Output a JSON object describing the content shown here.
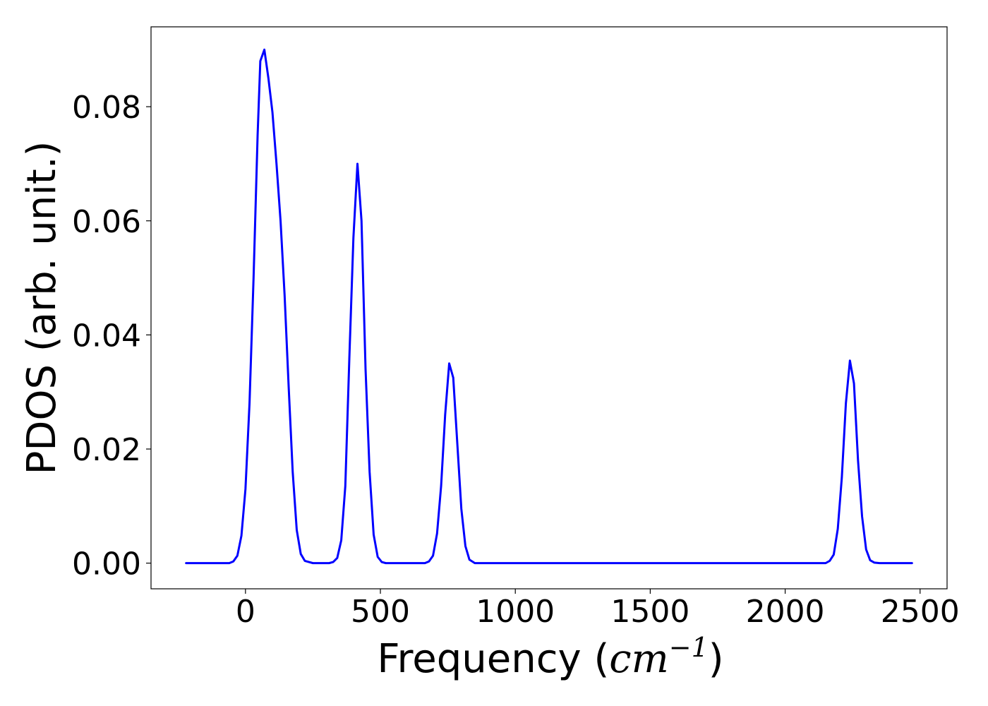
{
  "chart_data": {
    "type": "line",
    "title": "",
    "xlabel": {
      "prefix": "Frequency (",
      "unit_base": "cm",
      "unit_exponent": "−1",
      "suffix": ")"
    },
    "ylabel": "PDOS (arb. unit.)",
    "xlim": [
      -350,
      2600
    ],
    "ylim": [
      -0.0045,
      0.094
    ],
    "grid": false,
    "legend": "none",
    "xticks": [
      0,
      500,
      1000,
      1500,
      2000,
      2500
    ],
    "xtick_labels": [
      "0",
      "500",
      "1000",
      "1500",
      "2000",
      "2500"
    ],
    "yticks": [
      0.0,
      0.02,
      0.04,
      0.06,
      0.08
    ],
    "ytick_labels": [
      "0.00",
      "0.02",
      "0.04",
      "0.06",
      "0.08"
    ],
    "line_color": "#0000ff",
    "series": [
      {
        "x": [
          -220,
          -180,
          -140,
          -100,
          -60,
          -45,
          -30,
          -15,
          0,
          15,
          30,
          45,
          55,
          70,
          85,
          100,
          115,
          130,
          145,
          160,
          175,
          190,
          205,
          220,
          250,
          280,
          310,
          325,
          340,
          355,
          370,
          385,
          400,
          415,
          430,
          445,
          460,
          475,
          490,
          505,
          520,
          560,
          600,
          640,
          665,
          680,
          695,
          710,
          725,
          740,
          755,
          770,
          785,
          800,
          815,
          830,
          850,
          900,
          1000,
          1200,
          1400,
          1600,
          1800,
          2000,
          2100,
          2150,
          2165,
          2180,
          2195,
          2210,
          2225,
          2240,
          2255,
          2270,
          2285,
          2300,
          2315,
          2330,
          2350,
          2400,
          2470
        ],
        "y": [
          0.0,
          0.0,
          0.0,
          0.0,
          0.0,
          0.0003,
          0.0013,
          0.0048,
          0.013,
          0.028,
          0.05,
          0.075,
          0.088,
          0.09,
          0.085,
          0.079,
          0.07,
          0.06,
          0.047,
          0.031,
          0.016,
          0.0058,
          0.0016,
          0.0004,
          0.0,
          0.0,
          0.0,
          0.0002,
          0.0009,
          0.004,
          0.0135,
          0.036,
          0.057,
          0.07,
          0.06,
          0.034,
          0.016,
          0.005,
          0.0011,
          0.0002,
          0.0,
          0.0,
          0.0,
          0.0,
          0.0,
          0.0003,
          0.0013,
          0.0052,
          0.0135,
          0.026,
          0.035,
          0.0325,
          0.021,
          0.0095,
          0.003,
          0.0006,
          0.0,
          0.0,
          0.0,
          0.0,
          0.0,
          0.0,
          0.0,
          0.0,
          0.0,
          0.0,
          0.0004,
          0.0015,
          0.006,
          0.015,
          0.028,
          0.0355,
          0.0315,
          0.018,
          0.0082,
          0.0024,
          0.0005,
          0.0001,
          0.0,
          0.0,
          0.0
        ]
      }
    ]
  }
}
